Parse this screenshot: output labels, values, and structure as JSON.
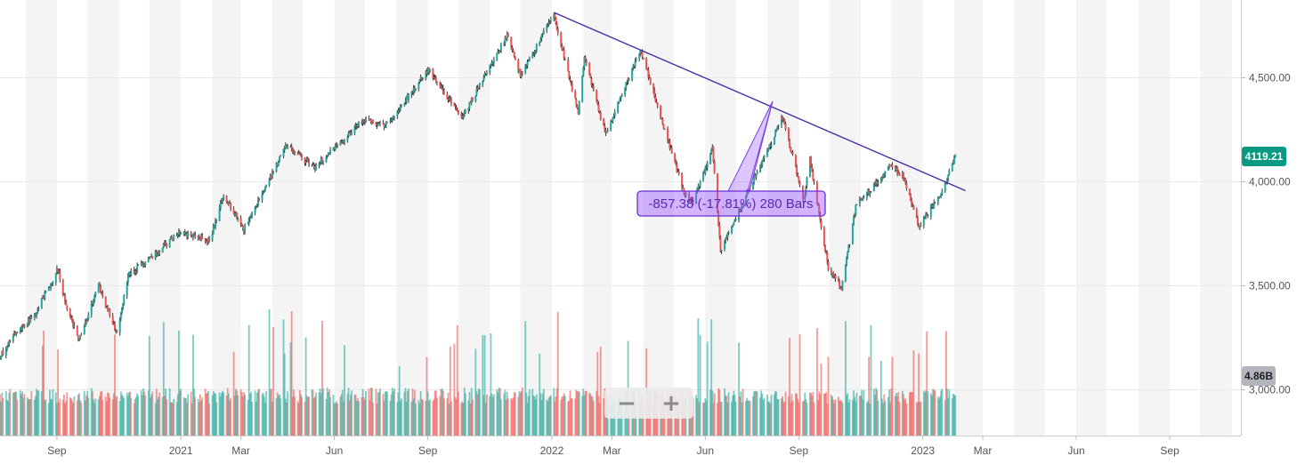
{
  "chart_data": {
    "type": "candlestick",
    "price_axis": {
      "range": [
        2780,
        4870
      ],
      "ticks": [
        {
          "v": 3000,
          "label": "3,000.00"
        },
        {
          "v": 3500,
          "label": "3,500.00"
        },
        {
          "v": 4000,
          "label": "4,000.00"
        },
        {
          "v": 4500,
          "label": "4,500.00"
        }
      ]
    },
    "time_axis": {
      "range": [
        "2020-07-07",
        "2023-11-10"
      ],
      "ticks": [
        {
          "date": "2020-09-01",
          "label": "Sep"
        },
        {
          "date": "2021-01-01",
          "label": "2021"
        },
        {
          "date": "2021-03-01",
          "label": "Mar"
        },
        {
          "date": "2021-06-01",
          "label": "Jun"
        },
        {
          "date": "2021-09-01",
          "label": "Sep"
        },
        {
          "date": "2022-01-01",
          "label": "2022"
        },
        {
          "date": "2022-03-01",
          "label": "Mar"
        },
        {
          "date": "2022-06-01",
          "label": "Jun"
        },
        {
          "date": "2022-09-01",
          "label": "Sep"
        },
        {
          "date": "2023-01-01",
          "label": "2023"
        },
        {
          "date": "2023-03-01",
          "label": "Mar"
        },
        {
          "date": "2023-06-01",
          "label": "Jun"
        },
        {
          "date": "2023-09-01",
          "label": "Sep"
        }
      ]
    },
    "price_path": [
      [
        "2020-07-07",
        3160
      ],
      [
        "2020-07-20",
        3250
      ],
      [
        "2020-08-10",
        3360
      ],
      [
        "2020-09-02",
        3580
      ],
      [
        "2020-09-10",
        3400
      ],
      [
        "2020-09-23",
        3240
      ],
      [
        "2020-10-12",
        3500
      ],
      [
        "2020-10-30",
        3270
      ],
      [
        "2020-11-10",
        3550
      ],
      [
        "2020-11-30",
        3620
      ],
      [
        "2020-12-31",
        3756
      ],
      [
        "2021-01-29",
        3714
      ],
      [
        "2021-02-12",
        3934
      ],
      [
        "2021-03-04",
        3768
      ],
      [
        "2021-04-15",
        4170
      ],
      [
        "2021-05-12",
        4063
      ],
      [
        "2021-06-30",
        4297
      ],
      [
        "2021-07-20",
        4260
      ],
      [
        "2021-09-02",
        4537
      ],
      [
        "2021-10-04",
        4300
      ],
      [
        "2021-11-18",
        4700
      ],
      [
        "2021-12-01",
        4510
      ],
      [
        "2022-01-03",
        4796
      ],
      [
        "2022-01-27",
        4326
      ],
      [
        "2022-02-02",
        4589
      ],
      [
        "2022-02-23",
        4225
      ],
      [
        "2022-03-29",
        4631
      ],
      [
        "2022-05-12",
        3930
      ],
      [
        "2022-05-20",
        3900
      ],
      [
        "2022-06-08",
        4160
      ],
      [
        "2022-06-16",
        3666
      ],
      [
        "2022-08-16",
        4305
      ],
      [
        "2022-09-06",
        3908
      ],
      [
        "2022-09-12",
        4110
      ],
      [
        "2022-09-30",
        3585
      ],
      [
        "2022-10-13",
        3491
      ],
      [
        "2022-10-28",
        3901
      ],
      [
        "2022-11-10",
        3956
      ],
      [
        "2022-12-01",
        4080
      ],
      [
        "2022-12-13",
        4019
      ],
      [
        "2022-12-28",
        3783
      ],
      [
        "2023-01-18",
        3928
      ],
      [
        "2023-02-02",
        4119
      ]
    ],
    "last_price": {
      "value": 4119.21,
      "label": "4119.21",
      "color": "#089981"
    },
    "volume": {
      "last_label": "4.86B",
      "label_color": "#b2b5be",
      "up_color": "#26a69a",
      "down_color": "#ef5350"
    },
    "trendline": {
      "from": [
        "2022-01-03",
        4810
      ],
      "to": [
        "2023-02-12",
        3955
      ],
      "color": "#4a2ba6"
    },
    "measure": {
      "label": "-857.38 (-17.81%) 280 Bars",
      "color": "#9d5bff"
    }
  }
}
